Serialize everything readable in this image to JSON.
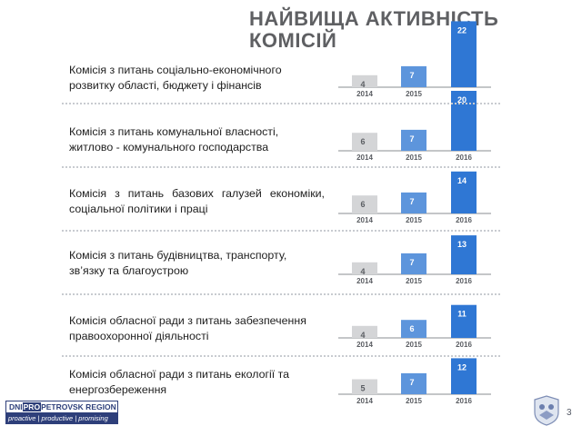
{
  "title_line1": "НАЙВИЩА  АКТИВНІСТЬ",
  "title_line2": "КОМІСІЙ",
  "page_number": "3",
  "footer": {
    "logo_prefix": "DNI",
    "logo_highlight": "PRO",
    "logo_suffix": "PETROVSK REGION",
    "tagline": "proactive | productive | promising"
  },
  "colors": {
    "bar_2014": "#d4d5d7",
    "bar_2015": "#5d95dc",
    "bar_2016": "#2f77d4",
    "axis": "#8a8d92",
    "label_light": "#5b5e63"
  },
  "rows": [
    {
      "label_line1": "Комісія з питань соціально-економічного",
      "label_line2": "розвитку області, бюджету і фінансів"
    },
    {
      "label_line1": "Комісія з питань комунальної власності,",
      "label_line2": "житлово - комунального господарства"
    },
    {
      "label_line1": "Комісія  з  питань  базових  галузей  економіки,",
      "label_line2": "соціальної політики і праці"
    },
    {
      "label_line1": "Комісія з питань будівництва, транспорту,",
      "label_line2": "зв’язку та благоустрою"
    },
    {
      "label_line1": "Комісія обласної ради з питань забезпечення",
      "label_line2": "правоохоронної діяльності"
    },
    {
      "label_line1": "Комісія обласної ради з питань екології та",
      "label_line2": "енергозбереження"
    }
  ],
  "chart_data": [
    {
      "type": "bar",
      "categories": [
        "2014",
        "2015",
        "2016"
      ],
      "values": [
        4,
        7,
        22
      ]
    },
    {
      "type": "bar",
      "categories": [
        "2014",
        "2015",
        "2016"
      ],
      "values": [
        6,
        7,
        20
      ]
    },
    {
      "type": "bar",
      "categories": [
        "2014",
        "2015",
        "2016"
      ],
      "values": [
        6,
        7,
        14
      ]
    },
    {
      "type": "bar",
      "categories": [
        "2014",
        "2015",
        "2016"
      ],
      "values": [
        4,
        7,
        13
      ]
    },
    {
      "type": "bar",
      "categories": [
        "2014",
        "2015",
        "2016"
      ],
      "values": [
        4,
        6,
        11
      ]
    },
    {
      "type": "bar",
      "categories": [
        "2014",
        "2015",
        "2016"
      ],
      "values": [
        5,
        7,
        12
      ]
    }
  ]
}
